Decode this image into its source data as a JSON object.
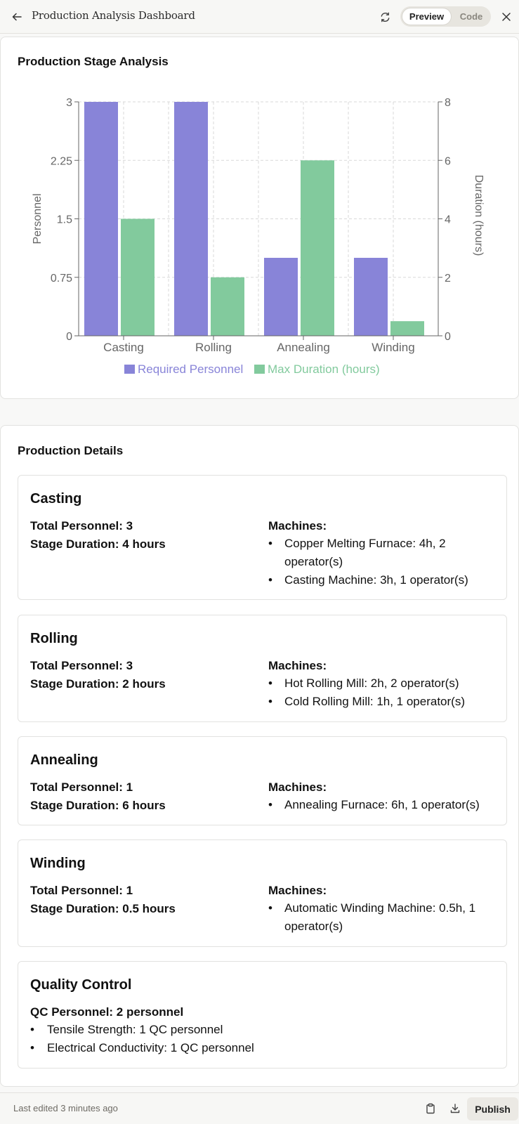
{
  "header": {
    "title": "Production Analysis Dashboard",
    "preview_label": "Preview",
    "code_label": "Code",
    "icons": [
      "back-arrow-icon",
      "refresh-icon",
      "close-icon"
    ]
  },
  "chart_section": {
    "title": "Production Stage Analysis"
  },
  "chart_data": {
    "type": "bar",
    "categories": [
      "Casting",
      "Rolling",
      "Annealing",
      "Winding"
    ],
    "series": [
      {
        "name": "Required Personnel",
        "axis": "left",
        "color": "#8884d8",
        "values": [
          3,
          3,
          1,
          1
        ]
      },
      {
        "name": "Max Duration (hours)",
        "axis": "right",
        "color": "#82ca9d",
        "values": [
          4,
          2,
          6,
          0.5
        ]
      }
    ],
    "ylabel": "Personnel",
    "y2label": "Duration (hours)",
    "ylim": [
      0,
      3
    ],
    "y2lim": [
      0,
      8
    ],
    "yticks": [
      "0",
      "0.75",
      "1.5",
      "2.25",
      "3"
    ],
    "y2ticks": [
      "0",
      "2",
      "4",
      "6",
      "8"
    ],
    "grid": true,
    "legend_position": "bottom"
  },
  "details_section": {
    "title": "Production Details",
    "machines_label": "Machines:",
    "stages": [
      {
        "name": "Casting",
        "personnel": "Total Personnel: 3",
        "duration": "Stage Duration: 4 hours",
        "machines": [
          "Copper Melting Furnace: 4h, 2 operator(s)",
          "Casting Machine: 3h, 1 operator(s)"
        ]
      },
      {
        "name": "Rolling",
        "personnel": "Total Personnel: 3",
        "duration": "Stage Duration: 2 hours",
        "machines": [
          "Hot Rolling Mill: 2h, 2 operator(s)",
          "Cold Rolling Mill: 1h, 1 operator(s)"
        ]
      },
      {
        "name": "Annealing",
        "personnel": "Total Personnel: 1",
        "duration": "Stage Duration: 6 hours",
        "machines": [
          "Annealing Furnace: 6h, 1 operator(s)"
        ]
      },
      {
        "name": "Winding",
        "personnel": "Total Personnel: 1",
        "duration": "Stage Duration: 0.5 hours",
        "machines": [
          "Automatic Winding Machine: 0.5h, 1 operator(s)"
        ]
      }
    ],
    "quality_control": {
      "title": "Quality Control",
      "personnel": "QC Personnel: 2 personnel",
      "items": [
        "Tensile Strength: 1 QC personnel",
        "Electrical Conductivity: 1 QC personnel"
      ]
    }
  },
  "footer": {
    "last_edited": "Last edited 3 minutes ago",
    "publish_label": "Publish",
    "icons": [
      "clipboard-icon",
      "download-icon"
    ]
  }
}
